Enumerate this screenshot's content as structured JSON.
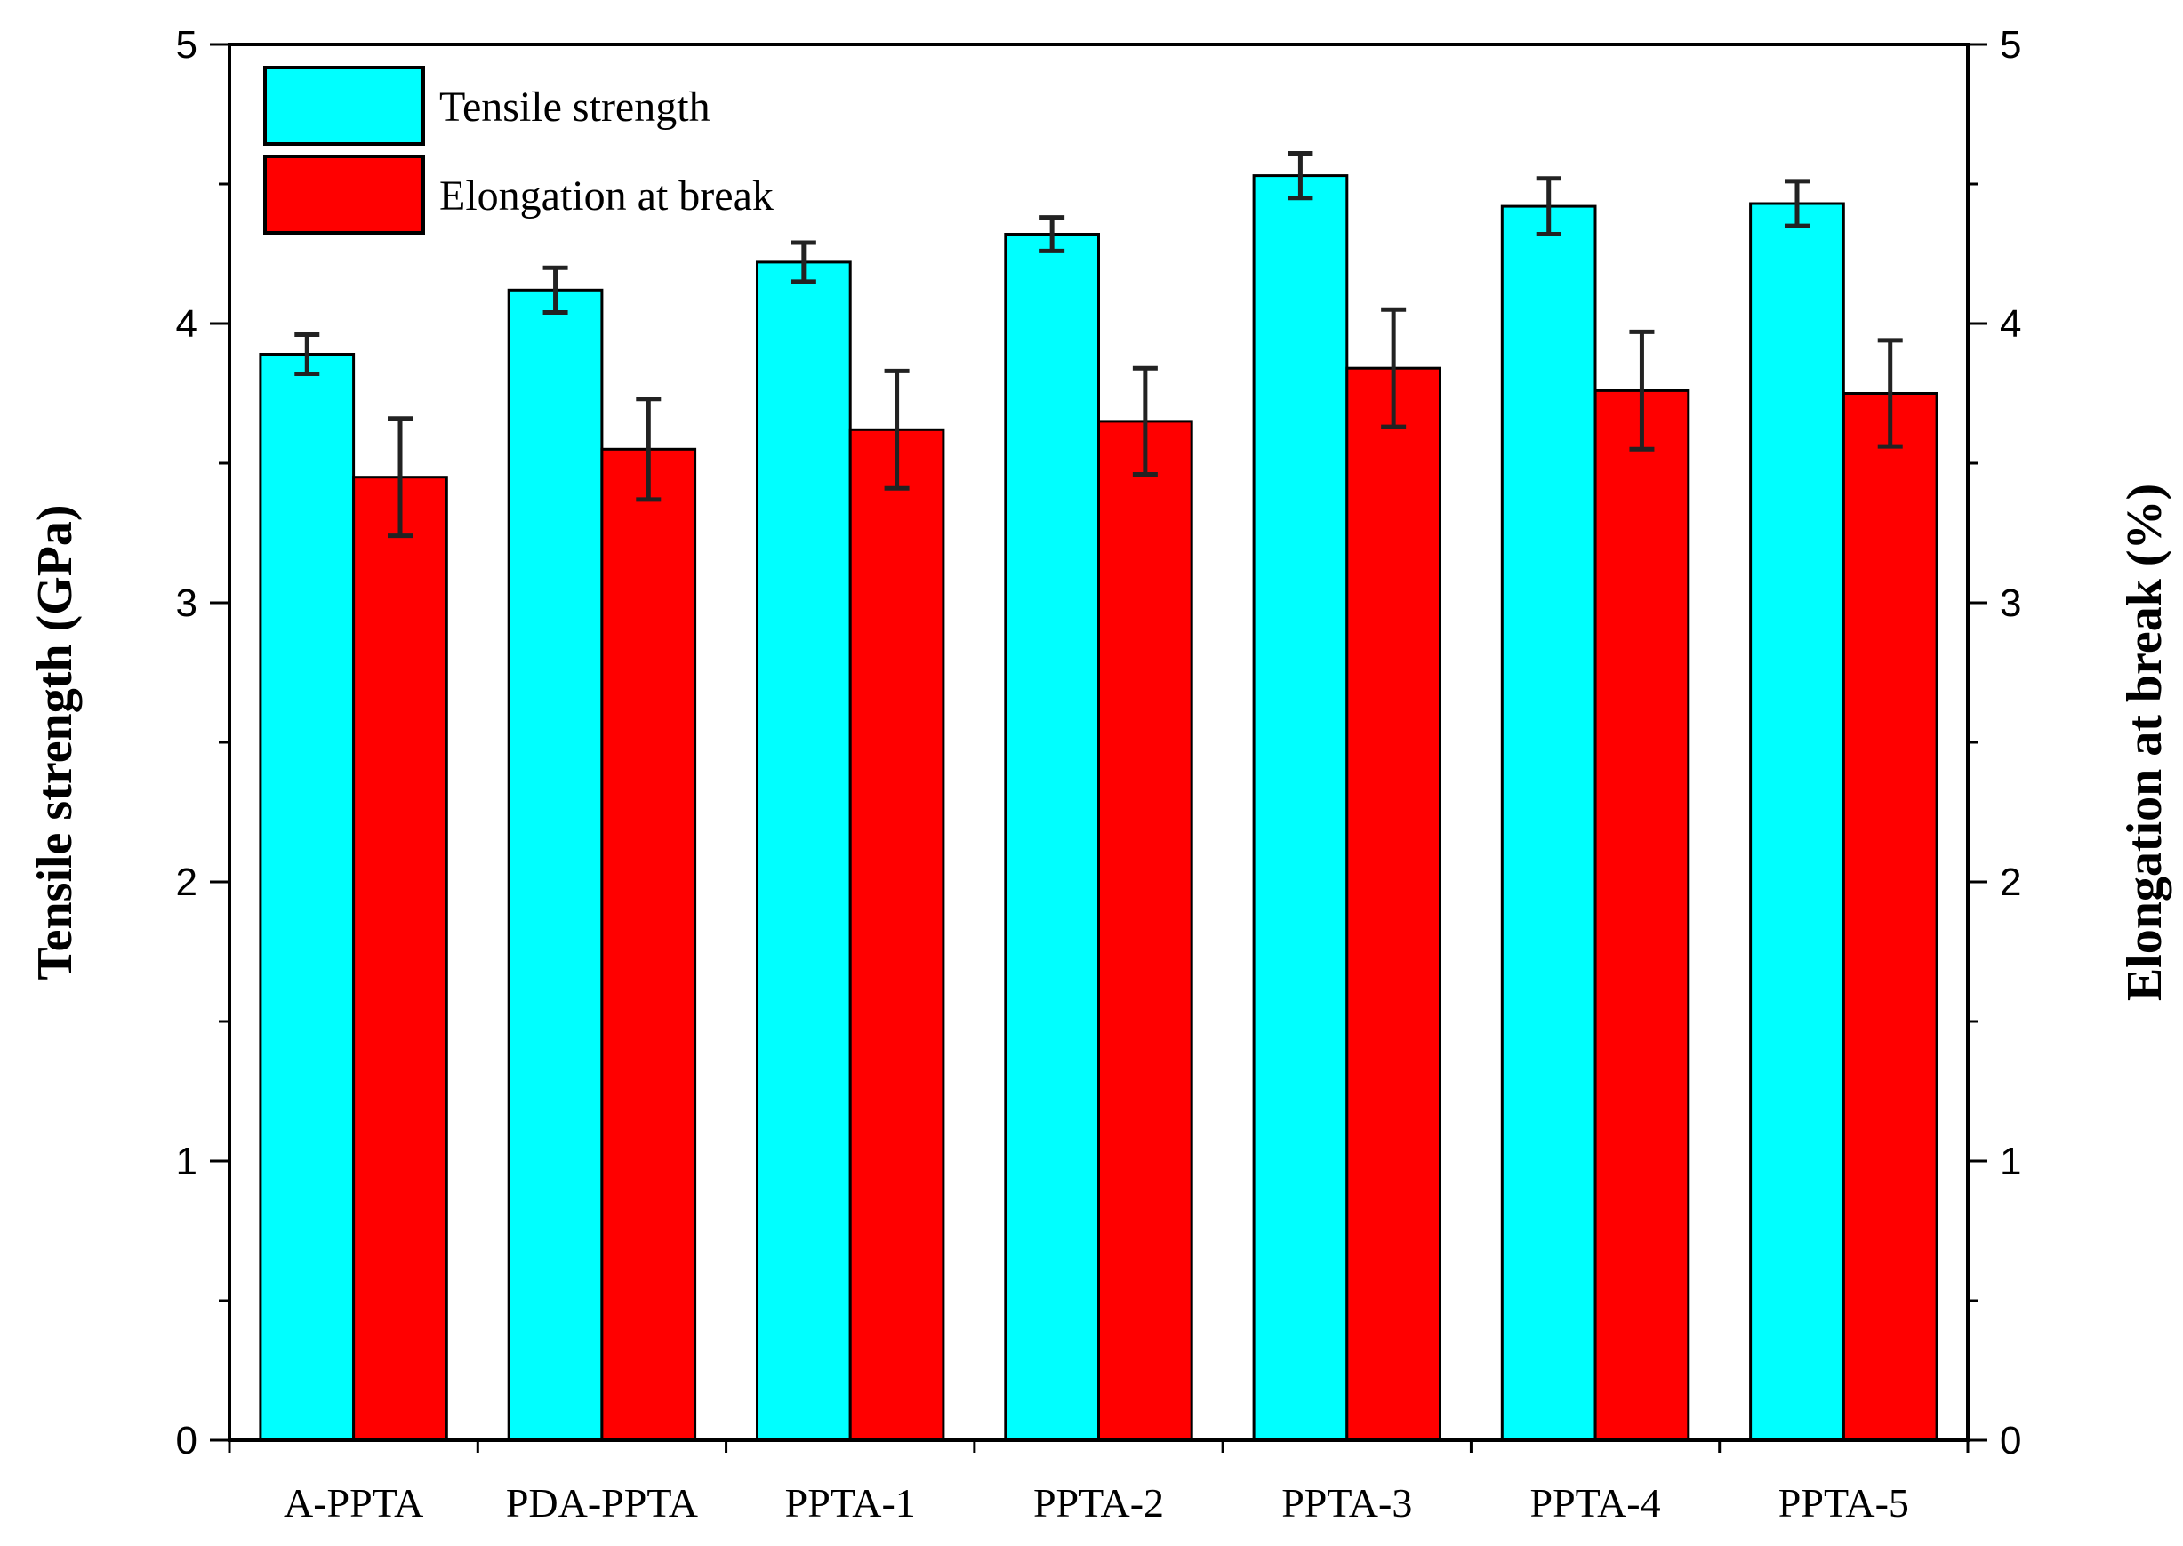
{
  "chart_data": {
    "type": "bar",
    "categories": [
      "A-PPTA",
      "PDA-PPTA",
      "PPTA-1",
      "PPTA-2",
      "PPTA-3",
      "PPTA-4",
      "PPTA-5"
    ],
    "series": [
      {
        "name": "Tensile strength",
        "axis": "left",
        "color": "#00FFFF",
        "values": [
          3.89,
          4.12,
          4.22,
          4.32,
          4.53,
          4.42,
          4.43
        ],
        "errors": [
          0.07,
          0.08,
          0.07,
          0.06,
          0.08,
          0.1,
          0.08
        ]
      },
      {
        "name": "Elongation at break",
        "axis": "right",
        "color": "#FF0000",
        "values": [
          3.45,
          3.55,
          3.62,
          3.65,
          3.84,
          3.76,
          3.75
        ],
        "errors": [
          0.21,
          0.18,
          0.21,
          0.19,
          0.21,
          0.21,
          0.19
        ]
      }
    ],
    "ylabel": "Tensile strength (GPa)",
    "y2label": "Elongation at break (%)",
    "ylim": [
      0,
      5
    ],
    "y2lim": [
      0,
      5
    ],
    "yticks": [
      "0",
      "1",
      "2",
      "3",
      "4",
      "5"
    ],
    "y2ticks": [
      "0",
      "1",
      "2",
      "3",
      "4",
      "5"
    ],
    "grid": false,
    "legend_position": "top-left"
  }
}
